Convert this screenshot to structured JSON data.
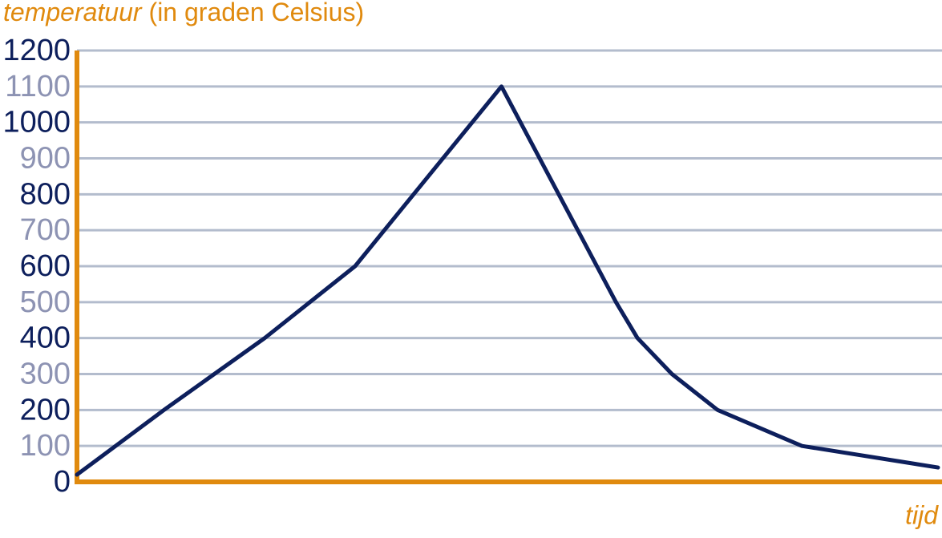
{
  "chart_data": {
    "type": "line",
    "ylabel": {
      "emphasis": "temperatuur",
      "rest": "(in graden Celsius)"
    },
    "xlabel": "tijd",
    "x": [
      0,
      10.1,
      21.8,
      32.3,
      49.3,
      62.6,
      65.1,
      69.1,
      74.4,
      84.2,
      100
    ],
    "values": [
      20,
      200,
      400,
      600,
      1100,
      500,
      400,
      300,
      200,
      100,
      40
    ],
    "color": "#0d1f5c",
    "xlim": [
      0,
      100
    ],
    "ylim": [
      0,
      1200
    ],
    "yticks": [
      0,
      100,
      200,
      300,
      400,
      500,
      600,
      700,
      800,
      900,
      1000,
      1100,
      1200
    ],
    "ytick_colors": [
      "#0d1f5c",
      "#8d93b3"
    ],
    "grid": true,
    "grid_color": "#b3bccd",
    "axis_color": "#e08a0e"
  }
}
